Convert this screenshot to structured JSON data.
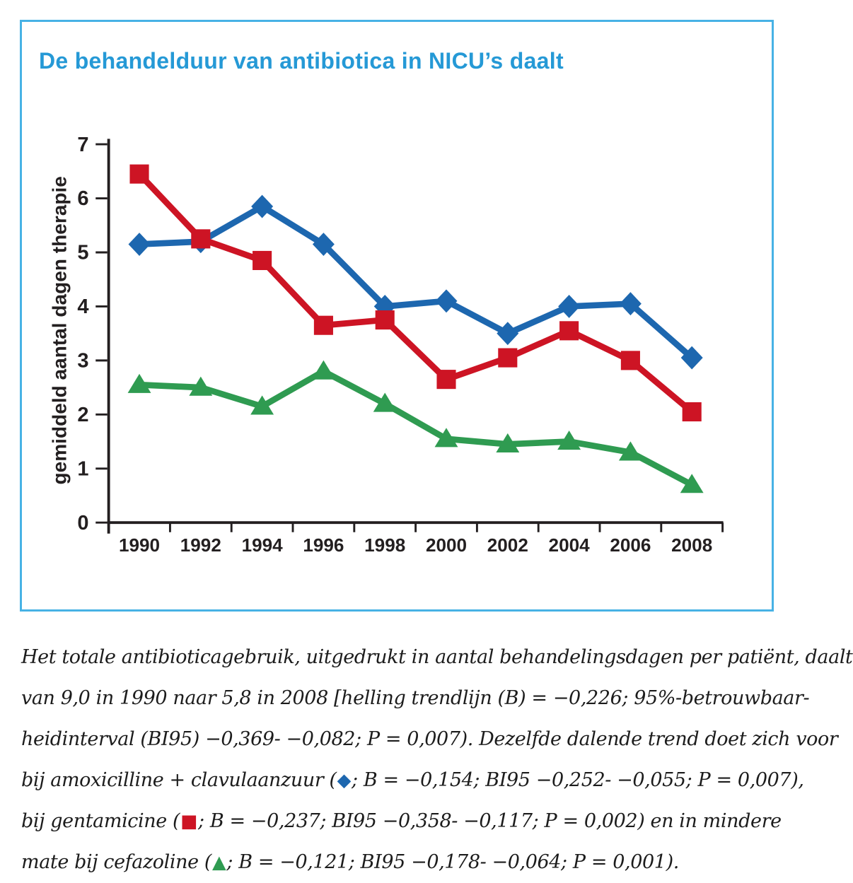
{
  "figure": {
    "border_color": "#47b2e5",
    "title_color": "#2599d6",
    "text_color": "#231f20"
  },
  "icons": {
    "diamond": "◆",
    "square": "■",
    "triangle": "▲"
  },
  "chart_data": {
    "type": "line",
    "title": "De behandelduur van antibiotica in NICU’s daalt",
    "xlabel": "",
    "ylabel": "gemiddeld aantal dagen therapie",
    "categories": [
      "1990",
      "1992",
      "1994",
      "1996",
      "1998",
      "2000",
      "2002",
      "2004",
      "2006",
      "2008"
    ],
    "ylim": [
      0,
      7
    ],
    "yticks": [
      0,
      1,
      2,
      3,
      4,
      5,
      6,
      7
    ],
    "grid": false,
    "legend_position": "none",
    "axis_color": "#231f20",
    "series": [
      {
        "name": "amoxicilline + clavulaanzuur",
        "marker": "diamond",
        "color": "#1d67af",
        "values": [
          5.15,
          5.2,
          5.85,
          5.15,
          4.0,
          4.1,
          3.5,
          4.0,
          4.05,
          3.05
        ]
      },
      {
        "name": "gentamicine",
        "marker": "square",
        "color": "#cd1424",
        "values": [
          6.45,
          5.25,
          4.85,
          3.65,
          3.75,
          2.65,
          3.05,
          3.55,
          3.0,
          2.05
        ]
      },
      {
        "name": "cefazoline",
        "marker": "triangle",
        "color": "#2f9b51",
        "values": [
          2.55,
          2.5,
          2.15,
          2.8,
          2.2,
          1.55,
          1.45,
          1.5,
          1.3,
          0.7
        ]
      }
    ]
  },
  "caption": {
    "lines": [
      [
        {
          "t": "Het totale antibioticagebruik, uitgedrukt in aantal behandelingsdagen per patiënt, daalt"
        }
      ],
      [
        {
          "t": "van 9,0 in 1990 naar 5,8 in 2008 [helling trendlijn (B) = −0,226; 95%-betrouwbaar-"
        }
      ],
      [
        {
          "t": "heidinterval (BI95) −0,369- −0,082; P = 0,007). Dezelfde dalende trend doet zich voor"
        }
      ],
      [
        {
          "t": "bij amoxicilline + clavulaanzuur ("
        },
        {
          "m": "diamond"
        },
        {
          "t": "; B = −0,154; BI95 −0,252- −0,055; P = 0,007),"
        }
      ],
      [
        {
          "t": "bij gentamicine ("
        },
        {
          "m": "square"
        },
        {
          "t": "; B = −0,237; BI95 −0,358- −0,117; P = 0,002) en in mindere"
        }
      ],
      [
        {
          "t": "mate bij cefazoline ("
        },
        {
          "m": "triangle"
        },
        {
          "t": "; B = −0,121; BI95 −0,178- −0,064; P = 0,001)."
        }
      ]
    ]
  }
}
